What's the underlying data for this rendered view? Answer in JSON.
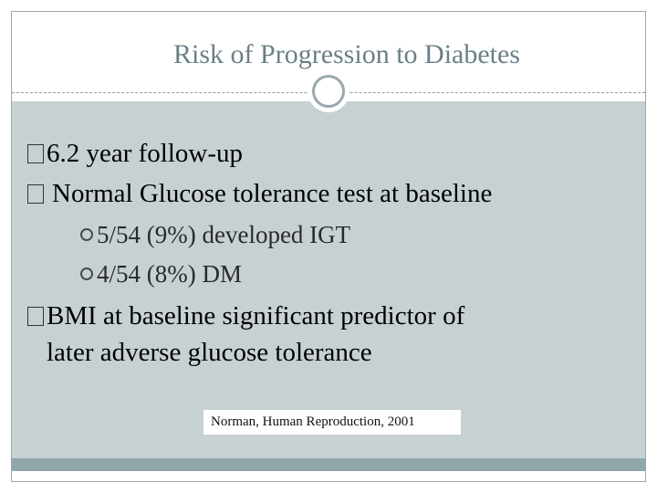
{
  "slide": {
    "title": "Risk of Progression to Diabetes",
    "bullets": [
      {
        "level": 1,
        "marker": "box",
        "text": "6.2 year follow-up"
      },
      {
        "level": 1,
        "marker": "box",
        "text": "Normal Glucose tolerance test at baseline"
      },
      {
        "level": 2,
        "marker": "ring",
        "text": "5/54 (9%) developed IGT"
      },
      {
        "level": 2,
        "marker": "ring",
        "text": "4/54 (8%) DM"
      },
      {
        "level": 1,
        "marker": "box",
        "text": "BMI at baseline significant predictor of"
      },
      {
        "level": 1,
        "marker": "none",
        "text": "later adverse glucose tolerance"
      }
    ],
    "citation": "Norman, Human Reproduction, 2001"
  },
  "colors": {
    "content_background": "#c7d1d4",
    "title_color": "#6a7f86",
    "bottom_band": "#8fa7aa"
  }
}
